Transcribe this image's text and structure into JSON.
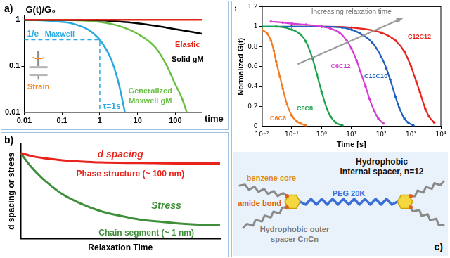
{
  "chart_data": [
    {
      "panel": "a)",
      "type": "line",
      "log": true,
      "x_label": "time",
      "y_label": "G(t)/G₀",
      "xlim": [
        0.01,
        500
      ],
      "ylim": [
        0.01,
        1.2
      ],
      "xticks": [
        0.01,
        0.1,
        1,
        10,
        100
      ],
      "yticks": [
        0.01,
        0.1,
        1
      ],
      "grid": false,
      "marker": "none",
      "line_style": "solid",
      "series": [
        {
          "name": "Elastic",
          "color": "#e2281b",
          "x": [
            0.01,
            500
          ],
          "values": [
            1,
            1
          ]
        },
        {
          "name": "Solid gM",
          "color": "#000000",
          "x": [
            0.01,
            0.1,
            0.5,
            1,
            3,
            10,
            30,
            100,
            300,
            500
          ],
          "values": [
            1,
            1,
            0.99,
            0.97,
            0.92,
            0.84,
            0.74,
            0.63,
            0.54,
            0.5
          ]
        },
        {
          "name": "Generalized Maxwell gM",
          "color": "#6cbf45",
          "x": [
            0.01,
            0.1,
            0.5,
            1,
            3,
            10,
            30,
            60,
            100,
            150,
            200
          ],
          "values": [
            1,
            0.99,
            0.95,
            0.9,
            0.75,
            0.5,
            0.25,
            0.1,
            0.04,
            0.02,
            0.01
          ]
        },
        {
          "name": "Maxwell",
          "color": "#29a9e1",
          "x": [
            0.01,
            0.02,
            0.05,
            0.1,
            0.2,
            0.5,
            1,
            2,
            3,
            4,
            4.6
          ],
          "values": [
            0.99,
            0.98,
            0.95,
            0.9,
            0.82,
            0.61,
            0.37,
            0.14,
            0.05,
            0.018,
            0.01
          ]
        }
      ],
      "guide": {
        "x": 1,
        "y": 0.37,
        "x_text": "τ=1s",
        "y_text": "1/e",
        "color": "#29a9e1",
        "line_style": "dashed"
      },
      "inset_text": "Strain",
      "inset_color": "#f08a24"
    },
    {
      "panel": "b)",
      "type": "line",
      "x_label": "Relaxation Time",
      "y_label": "d spacing or stress",
      "xlim": [
        0,
        10
      ],
      "ylim": [
        0,
        10
      ],
      "tick_labels": false,
      "grid": false,
      "marker": "none",
      "line_style": "solid",
      "series": [
        {
          "name": "d spacing",
          "note": "Phase structure (~ 100 nm)",
          "color": "#e8231b",
          "x": [
            0,
            0.5,
            1,
            2,
            3,
            4,
            6,
            8,
            10
          ],
          "values": [
            9,
            8.7,
            8.5,
            8.25,
            8.1,
            8,
            7.95,
            7.9,
            7.9
          ]
        },
        {
          "name": "Stress",
          "note": "Chain segment (~ 1 nm)",
          "color": "#3f8f3a",
          "x": [
            0,
            0.5,
            1,
            1.5,
            2,
            3,
            4,
            5,
            6,
            7,
            8,
            10
          ],
          "values": [
            9,
            7.6,
            6.5,
            5.6,
            4.8,
            3.7,
            2.9,
            2.4,
            2,
            1.8,
            1.6,
            1.4
          ]
        }
      ]
    },
    {
      "panel": "c)",
      "corner_text": ",",
      "type": "line",
      "log": "x",
      "x_label": "Time [s]",
      "y_label": "Normalized G(t)",
      "xlim": [
        0.01,
        10000
      ],
      "ylim": [
        0,
        1.2
      ],
      "xticks": [
        {
          "value": 0.01,
          "label": "10⁻²"
        },
        {
          "value": 0.1,
          "label": "10⁻¹"
        },
        {
          "value": 1,
          "label": "10⁰"
        },
        {
          "value": 10,
          "label": "10¹"
        },
        {
          "value": 100,
          "label": "10²"
        },
        {
          "value": 1000,
          "label": "10³"
        },
        {
          "value": 10000,
          "label": "10⁴"
        }
      ],
      "yticks": [
        0,
        0.2,
        0.4,
        0.6,
        0.8,
        1,
        1.2
      ],
      "grid": false,
      "marker": "circle",
      "line_style": "solid",
      "annotation": "Increasing relaxation time",
      "series": [
        {
          "name": "C6C6",
          "color": "#f47b20",
          "x": [
            0.01,
            0.015,
            0.02,
            0.025,
            0.03,
            0.04,
            0.05,
            0.07,
            0.1,
            0.15,
            0.2,
            0.3
          ],
          "values": [
            0.97,
            0.93,
            0.86,
            0.76,
            0.65,
            0.5,
            0.38,
            0.22,
            0.11,
            0.05,
            0.03,
            0.01
          ]
        },
        {
          "name": "C8C8",
          "color": "#17a34a",
          "x": [
            0.01,
            0.03,
            0.1,
            0.2,
            0.3,
            0.5,
            0.7,
            1,
            1.5,
            2,
            3,
            5
          ],
          "values": [
            1,
            1,
            0.97,
            0.92,
            0.85,
            0.68,
            0.52,
            0.35,
            0.18,
            0.1,
            0.04,
            0.01
          ]
        },
        {
          "name": "C6C12",
          "color": "#d63bd6",
          "x": [
            0.02,
            0.05,
            0.1,
            0.3,
            1,
            2,
            4,
            7,
            10,
            15,
            20,
            30,
            40,
            60,
            80,
            120
          ],
          "values": [
            1.05,
            1.04,
            1.03,
            1.02,
            1,
            0.98,
            0.94,
            0.86,
            0.78,
            0.66,
            0.55,
            0.4,
            0.28,
            0.15,
            0.08,
            0.03
          ]
        },
        {
          "name": "C10C10",
          "color": "#2060c0",
          "x": [
            0.01,
            0.1,
            1,
            5,
            10,
            20,
            50,
            100,
            150,
            200,
            300,
            400,
            600,
            800,
            1200
          ],
          "values": [
            1,
            1,
            1,
            0.99,
            0.97,
            0.93,
            0.84,
            0.7,
            0.58,
            0.47,
            0.3,
            0.19,
            0.08,
            0.04,
            0.01
          ]
        },
        {
          "name": "C12C12",
          "color": "#e8231b",
          "x": [
            0.1,
            1,
            10,
            100,
            300,
            600,
            1000,
            1500,
            2000,
            3000,
            4000,
            6000
          ],
          "values": [
            1,
            1,
            0.99,
            0.94,
            0.86,
            0.75,
            0.6,
            0.45,
            0.34,
            0.18,
            0.1,
            0.04
          ]
        }
      ]
    }
  ],
  "diagram": {
    "labels": [
      {
        "text": "Hydrophobic internal spacer, n=12",
        "color": "#111111"
      },
      {
        "text": "benzene core",
        "color": "#e58a12"
      },
      {
        "text": "amide bond",
        "color": "#e0601a"
      },
      {
        "text": "PEG 20K",
        "color": "#3b6fd6"
      },
      {
        "text": "Hydrophobic outer spacer CnCn",
        "color": "#7a7a7a"
      }
    ]
  }
}
